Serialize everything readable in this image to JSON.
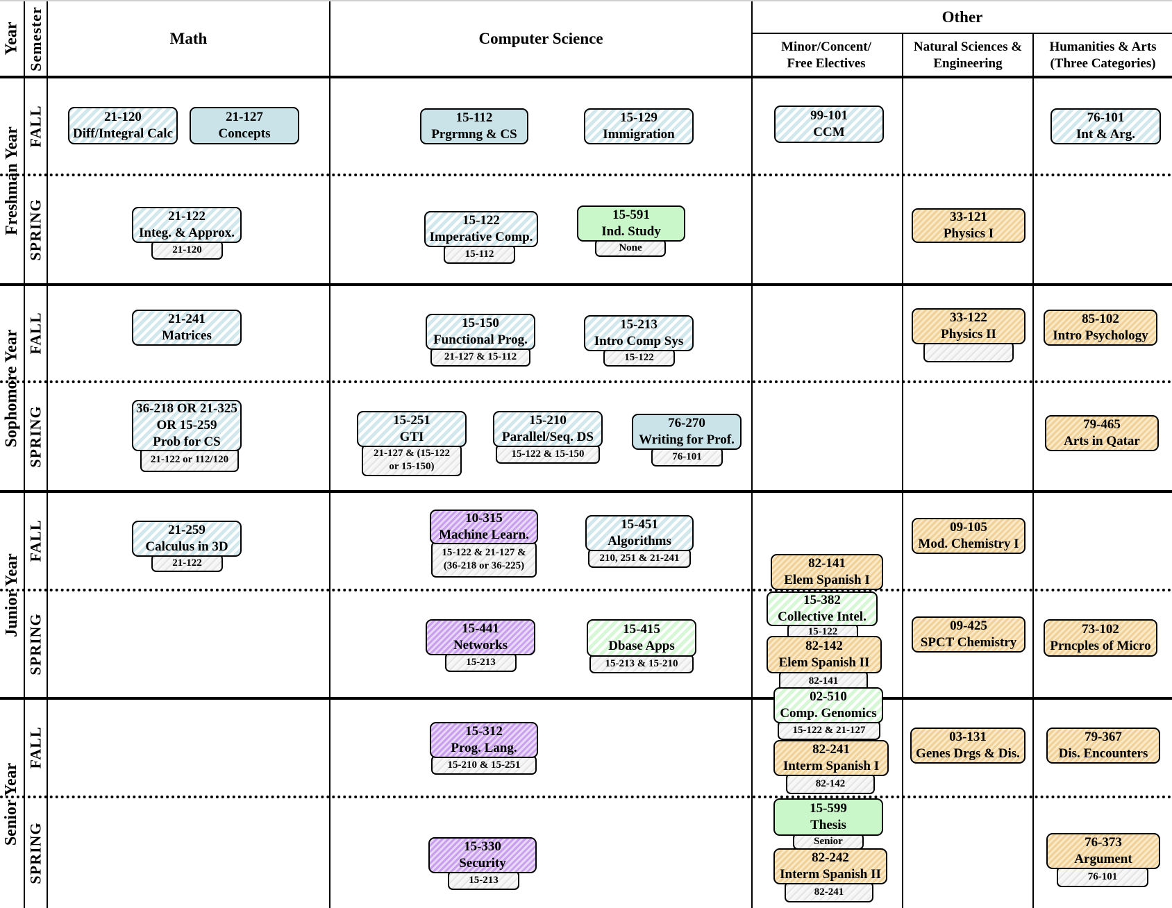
{
  "headers": {
    "year": "Year",
    "semester": "Semester",
    "math": "Math",
    "cs": "Computer Science",
    "other": "Other",
    "minor": "Minor/Concent/ Free Electives",
    "natsci": "Natural Sciences & Engineering",
    "humanities": "Humanities & Arts (Three Categories)"
  },
  "years": {
    "freshman": "Freshman Year",
    "sophomore": "Sophomore Year",
    "junior": "Junior Year",
    "senior": "Senior Year"
  },
  "semesters": {
    "fall": "FALL",
    "spring": "SPRING"
  },
  "courses": {
    "c21120": {
      "code": "21-120",
      "name": "Diff/Integral Calc"
    },
    "c21127": {
      "code": "21-127",
      "name": "Concepts"
    },
    "c15112": {
      "code": "15-112",
      "name": "Prgrmng & CS"
    },
    "c15129": {
      "code": "15-129",
      "name": "Immigration"
    },
    "c99101": {
      "code": "99-101",
      "name": "CCM"
    },
    "c76101": {
      "code": "76-101",
      "name": "Int & Arg."
    },
    "c21122": {
      "code": "21-122",
      "name": "Integ. & Approx.",
      "prereq": "21-120"
    },
    "c15122": {
      "code": "15-122",
      "name": "Imperative Comp.",
      "prereq": "15-112"
    },
    "c15591": {
      "code": "15-591",
      "name": "Ind. Study",
      "prereq": "None"
    },
    "c33121": {
      "code": "33-121",
      "name": "Physics I"
    },
    "c21241": {
      "code": "21-241",
      "name": "Matrices"
    },
    "c15150": {
      "code": "15-150",
      "name": "Functional Prog.",
      "prereq": "21-127 & 15-112"
    },
    "c15213": {
      "code": "15-213",
      "name": "Intro Comp Sys",
      "prereq": "15-122"
    },
    "c33122": {
      "code": "33-122",
      "name": "Physics II",
      "prereq": ""
    },
    "c85102": {
      "code": "85-102",
      "name": "Intro Psychology"
    },
    "c36218": {
      "line1": "36-218 OR 21-325",
      "line2": "OR 15-259",
      "line3": "Prob for CS",
      "prereq": "21-122 or 112/120"
    },
    "c15251": {
      "code": "15-251",
      "name": "GTI",
      "prereq1": "21-127 & (15-122",
      "prereq2": "or 15-150)"
    },
    "c15210": {
      "code": "15-210",
      "name": "Parallel/Seq. DS",
      "prereq": "15-122 & 15-150"
    },
    "c76270": {
      "code": "76-270",
      "name": "Writing for Prof.",
      "prereq": "76-101"
    },
    "c79465": {
      "code": "79-465",
      "name": "Arts in Qatar"
    },
    "c21259": {
      "code": "21-259",
      "name": "Calculus in 3D",
      "prereq": "21-122"
    },
    "c10315": {
      "code": "10-315",
      "name": "Machine Learn.",
      "prereq1": "15-122 & 21-127 &",
      "prereq2": "(36-218 or 36-225)"
    },
    "c15451": {
      "code": "15-451",
      "name": "Algorithms",
      "prereq": "210, 251 & 21-241"
    },
    "c82141": {
      "code": "82-141",
      "name": "Elem Spanish I"
    },
    "c09105": {
      "code": "09-105",
      "name": "Mod. Chemistry I"
    },
    "c15441": {
      "code": "15-441",
      "name": "Networks",
      "prereq": "15-213"
    },
    "c15415": {
      "code": "15-415",
      "name": "Dbase Apps",
      "prereq": "15-213 & 15-210"
    },
    "c15382": {
      "code": "15-382",
      "name": "Collective Intel.",
      "prereq": "15-122"
    },
    "c82142": {
      "code": "82-142",
      "name": "Elem Spanish II",
      "prereq": "82-141"
    },
    "c09425": {
      "code": "09-425",
      "name": "SPCT Chemistry"
    },
    "c73102": {
      "code": "73-102",
      "name": "Prncples of Micro"
    },
    "c02510": {
      "code": "02-510",
      "name": "Comp. Genomics",
      "prereq": "15-122 & 21-127"
    },
    "c15312": {
      "code": "15-312",
      "name": "Prog. Lang.",
      "prereq": "15-210 & 15-251"
    },
    "c82241": {
      "code": "82-241",
      "name": "Interm Spanish I",
      "prereq": "82-142"
    },
    "c03131": {
      "code": "03-131",
      "name": "Genes Drgs & Dis."
    },
    "c79367": {
      "code": "79-367",
      "name": "Dis. Encounters"
    },
    "c15330": {
      "code": "15-330",
      "name": "Security",
      "prereq": "15-213"
    },
    "c15599": {
      "code": "15-599",
      "name": "Thesis",
      "prereq": "Senior"
    },
    "c82242": {
      "code": "82-242",
      "name": "Interm Spanish II",
      "prereq": "82-241"
    },
    "c76373": {
      "code": "76-373",
      "name": "Argument",
      "prereq": "76-101"
    }
  }
}
